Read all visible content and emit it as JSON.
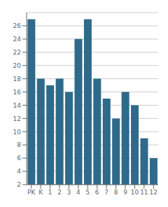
{
  "chart_data": {
    "type": "bar",
    "categories": [
      "PK",
      "K",
      "1",
      "2",
      "3",
      "4",
      "5",
      "6",
      "7",
      "8",
      "9",
      "10",
      "11",
      "12"
    ],
    "values": [
      27,
      18,
      17,
      18,
      16,
      24,
      27,
      18,
      15,
      12,
      16,
      14,
      9,
      6
    ],
    "color": "#2e6a8a",
    "ylim": [
      2,
      28
    ],
    "yticks": [
      2,
      4,
      6,
      8,
      10,
      12,
      14,
      16,
      18,
      20,
      22,
      24,
      26
    ],
    "grid": true
  }
}
